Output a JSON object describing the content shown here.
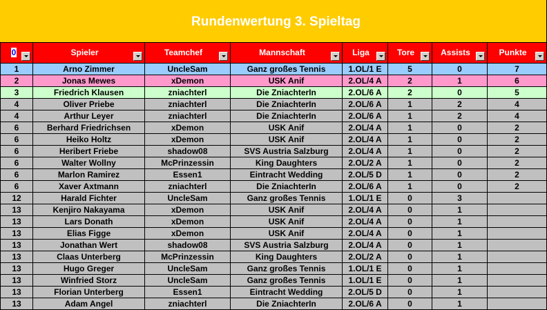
{
  "title": "Rundenwertung 3. Spieltag",
  "columns": [
    "0",
    "Spieler",
    "Teamchef",
    "Mannschaft",
    "Liga",
    "Tore",
    "Assists",
    "Punkte"
  ],
  "rows": [
    {
      "rank": "1",
      "spieler": "Arno Zimmer",
      "teamchef": "UncleSam",
      "mannschaft": "Ganz großes Tennis",
      "liga": "1.OL/1 E",
      "tore": "5",
      "assists": "0",
      "punkte": "7",
      "style": "blue"
    },
    {
      "rank": "2",
      "spieler": "Jonas Mewes",
      "teamchef": "xDemon",
      "mannschaft": "USK Anif",
      "liga": "2.OL/4 A",
      "tore": "2",
      "assists": "1",
      "punkte": "6",
      "style": "pink"
    },
    {
      "rank": "3",
      "spieler": "Friedrich Klausen",
      "teamchef": "zniachterl",
      "mannschaft": "Die ZniachterIn",
      "liga": "2.OL/6 A",
      "tore": "2",
      "assists": "0",
      "punkte": "5",
      "style": "green"
    },
    {
      "rank": "4",
      "spieler": "Oliver Priebe",
      "teamchef": "zniachterl",
      "mannschaft": "Die ZniachterIn",
      "liga": "2.OL/6 A",
      "tore": "1",
      "assists": "2",
      "punkte": "4",
      "style": "grey"
    },
    {
      "rank": "4",
      "spieler": "Arthur Leyer",
      "teamchef": "zniachterl",
      "mannschaft": "Die ZniachterIn",
      "liga": "2.OL/6 A",
      "tore": "1",
      "assists": "2",
      "punkte": "4",
      "style": "grey"
    },
    {
      "rank": "6",
      "spieler": "Berhard Friedrichsen",
      "teamchef": "xDemon",
      "mannschaft": "USK Anif",
      "liga": "2.OL/4 A",
      "tore": "1",
      "assists": "0",
      "punkte": "2",
      "style": "grey"
    },
    {
      "rank": "6",
      "spieler": "Heiko Holtz",
      "teamchef": "xDemon",
      "mannschaft": "USK Anif",
      "liga": "2.OL/4 A",
      "tore": "1",
      "assists": "0",
      "punkte": "2",
      "style": "grey"
    },
    {
      "rank": "6",
      "spieler": "Heribert Friebe",
      "teamchef": "shadow08",
      "mannschaft": "SVS Austria Salzburg",
      "liga": "2.OL/4 A",
      "tore": "1",
      "assists": "0",
      "punkte": "2",
      "style": "grey"
    },
    {
      "rank": "6",
      "spieler": "Walter Wollny",
      "teamchef": "McPrinzessin",
      "mannschaft": "King Daughters",
      "liga": "2.OL/2 A",
      "tore": "1",
      "assists": "0",
      "punkte": "2",
      "style": "grey"
    },
    {
      "rank": "6",
      "spieler": "Marlon Ramirez",
      "teamchef": "Essen1",
      "mannschaft": "Eintracht Wedding",
      "liga": "2.OL/5 D",
      "tore": "1",
      "assists": "0",
      "punkte": "2",
      "style": "grey"
    },
    {
      "rank": "6",
      "spieler": "Xaver Axtmann",
      "teamchef": "zniachterl",
      "mannschaft": "Die ZniachterIn",
      "liga": "2.OL/6 A",
      "tore": "1",
      "assists": "0",
      "punkte": "2",
      "style": "grey"
    },
    {
      "rank": "12",
      "spieler": "Harald Fichter",
      "teamchef": "UncleSam",
      "mannschaft": "Ganz großes Tennis",
      "liga": "1.OL/1 E",
      "tore": "0",
      "assists": "3",
      "punkte": "",
      "style": "grey"
    },
    {
      "rank": "13",
      "spieler": "Kenjiro Nakayama",
      "teamchef": "xDemon",
      "mannschaft": "USK Anif",
      "liga": "2.OL/4 A",
      "tore": "0",
      "assists": "1",
      "punkte": "",
      "style": "grey"
    },
    {
      "rank": "13",
      "spieler": "Lars Donath",
      "teamchef": "xDemon",
      "mannschaft": "USK Anif",
      "liga": "2.OL/4 A",
      "tore": "0",
      "assists": "1",
      "punkte": "",
      "style": "grey"
    },
    {
      "rank": "13",
      "spieler": "Elias Figge",
      "teamchef": "xDemon",
      "mannschaft": "USK Anif",
      "liga": "2.OL/4 A",
      "tore": "0",
      "assists": "1",
      "punkte": "",
      "style": "grey"
    },
    {
      "rank": "13",
      "spieler": "Jonathan Wert",
      "teamchef": "shadow08",
      "mannschaft": "SVS Austria Salzburg",
      "liga": "2.OL/4 A",
      "tore": "0",
      "assists": "1",
      "punkte": "",
      "style": "grey"
    },
    {
      "rank": "13",
      "spieler": "Claas Unterberg",
      "teamchef": "McPrinzessin",
      "mannschaft": "King Daughters",
      "liga": "2.OL/2 A",
      "tore": "0",
      "assists": "1",
      "punkte": "",
      "style": "grey"
    },
    {
      "rank": "13",
      "spieler": "Hugo Greger",
      "teamchef": "UncleSam",
      "mannschaft": "Ganz großes Tennis",
      "liga": "1.OL/1 E",
      "tore": "0",
      "assists": "1",
      "punkte": "",
      "style": "grey"
    },
    {
      "rank": "13",
      "spieler": "Winfried Storz",
      "teamchef": "UncleSam",
      "mannschaft": "Ganz großes Tennis",
      "liga": "1.OL/1 E",
      "tore": "0",
      "assists": "1",
      "punkte": "",
      "style": "grey"
    },
    {
      "rank": "13",
      "spieler": "Florian Unterberg",
      "teamchef": "Essen1",
      "mannschaft": "Eintracht Wedding",
      "liga": "2.OL/5 D",
      "tore": "0",
      "assists": "1",
      "punkte": "",
      "style": "grey"
    },
    {
      "rank": "13",
      "spieler": "Adam Angel",
      "teamchef": "zniachterl",
      "mannschaft": "Die ZniachterIn",
      "liga": "2.OL/6 A",
      "tore": "0",
      "assists": "1",
      "punkte": "",
      "style": "grey"
    }
  ],
  "colors": {
    "title_bg": "#ffcc00",
    "header_bg": "#ff0000",
    "first_place": "#99ccff",
    "second_place": "#ff99cc",
    "third_place": "#ccffcc",
    "other": "#c0c0c0"
  }
}
